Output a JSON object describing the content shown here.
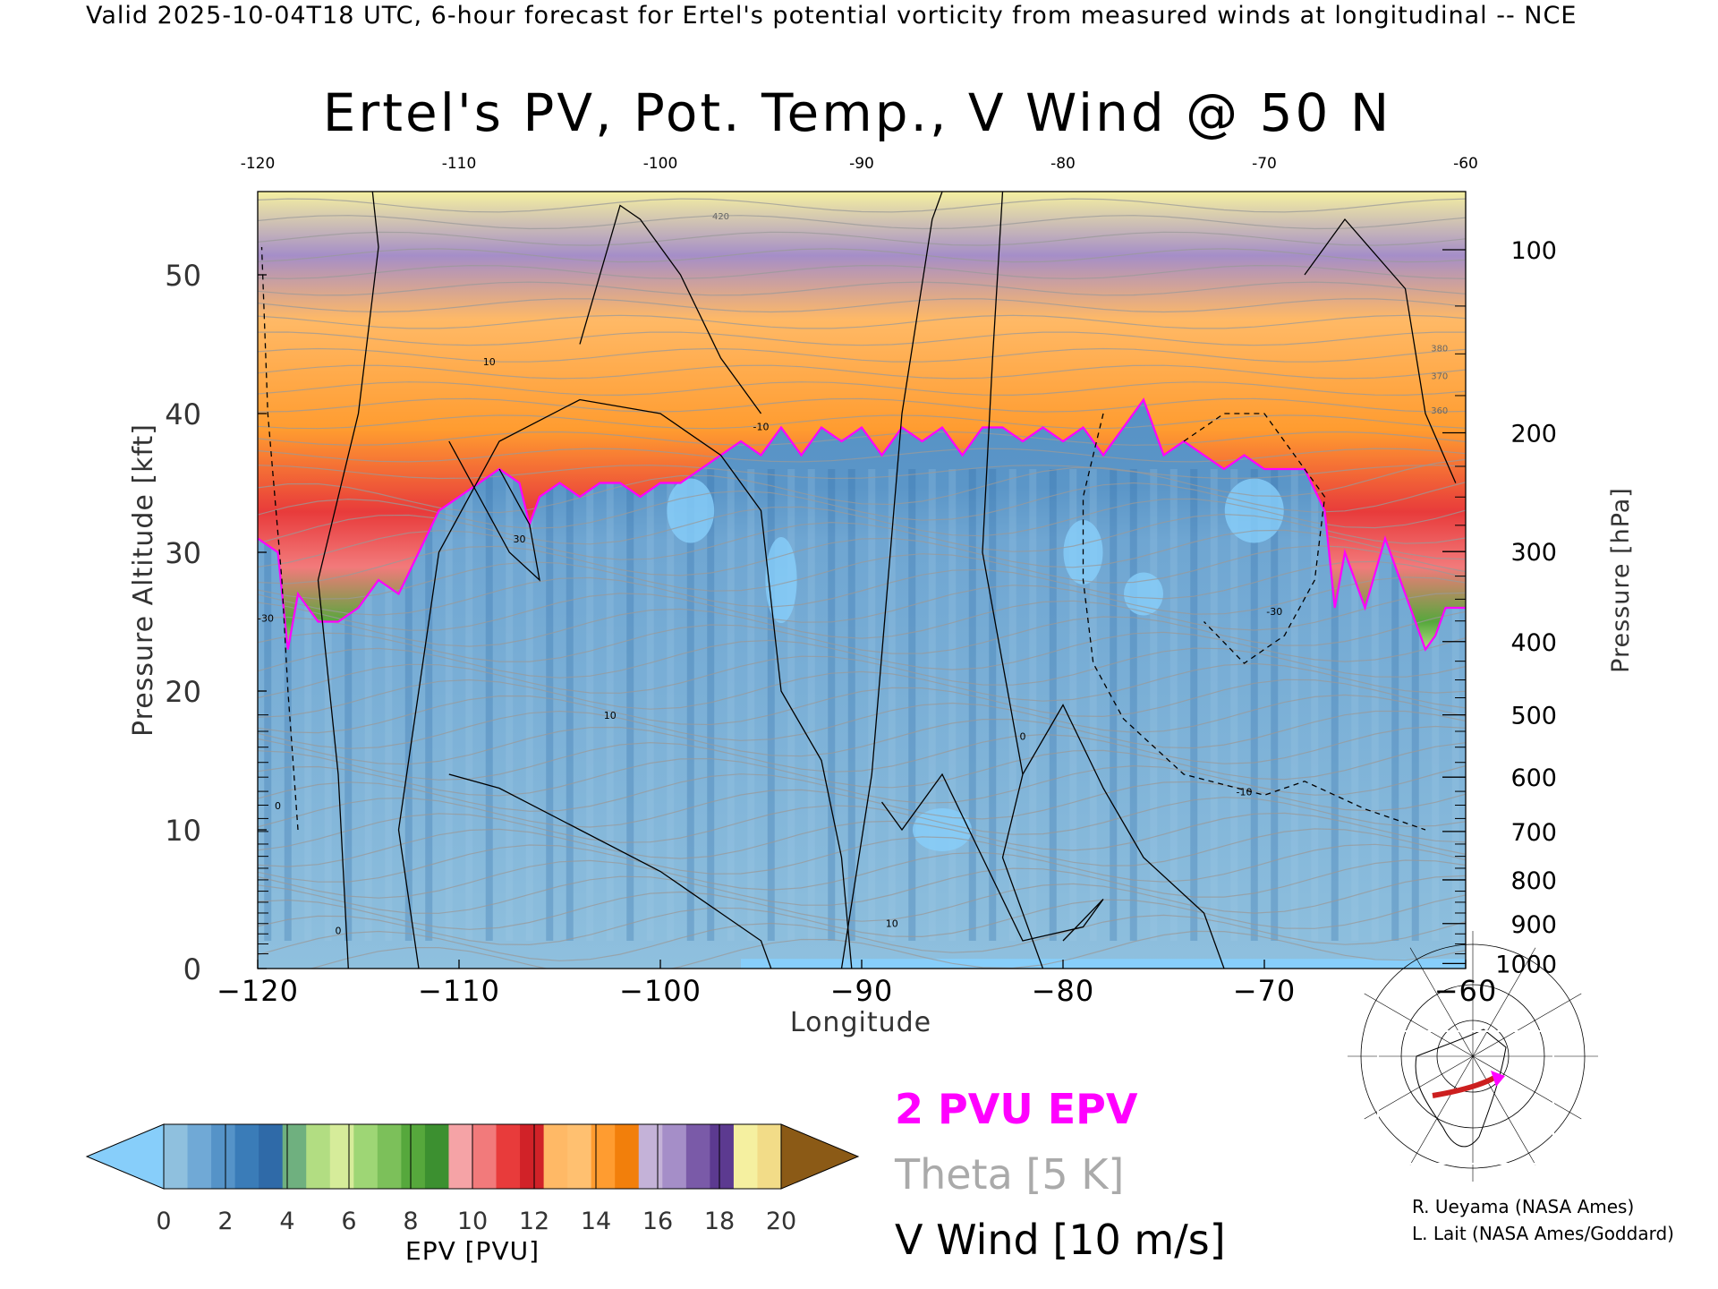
{
  "header": {
    "text": "Valid 2025-10-04T18 UTC, 6-hour forecast for Ertel's potential vorticity from measured winds at longitudinal -- NCE"
  },
  "chart_data": {
    "type": "heatmap",
    "title": "Ertel's PV, Pot. Temp., V Wind @ 50 N",
    "xlabel": "Longitude",
    "ylabel": "Pressure Altitude [kft]",
    "y2label": "Pressure [hPa]",
    "xlim": [
      -120,
      -60
    ],
    "ylim": [
      0,
      56
    ],
    "x_ticks": [
      "−120",
      "−110",
      "−100",
      "−90",
      "−80",
      "−70",
      "−60"
    ],
    "x_tick_values": [
      -120,
      -110,
      -100,
      -90,
      -80,
      -70,
      -60
    ],
    "top_x_ticks": [
      "-120",
      "-110",
      "-100",
      "-90",
      "-80",
      "-70",
      "-60"
    ],
    "y_ticks": [
      "0",
      "10",
      "20",
      "30",
      "40",
      "50"
    ],
    "y_tick_values": [
      0,
      10,
      20,
      30,
      40,
      50
    ],
    "pressure_ticks": [
      "1000",
      "900",
      "800",
      "700",
      "600",
      "500",
      "400",
      "300",
      "200",
      "100"
    ],
    "pressure_tick_values": [
      1000,
      900,
      800,
      700,
      600,
      500,
      400,
      300,
      200,
      100
    ],
    "tropopause_2pvu_kft": {
      "lon": [
        -120,
        -119,
        -118.5,
        -118,
        -117,
        -116,
        -115,
        -114,
        -113,
        -112,
        -111,
        -110,
        -109,
        -108,
        -107,
        -106.5,
        -106,
        -105,
        -104,
        -103,
        -102,
        -101,
        -100,
        -99,
        -98,
        -97,
        -96,
        -95,
        -94,
        -93,
        -92,
        -91,
        -90,
        -89,
        -88,
        -87,
        -86,
        -85,
        -84,
        -83,
        -82,
        -81,
        -80,
        -79,
        -78,
        -77,
        -76,
        -75,
        -74,
        -73,
        -72,
        -71,
        -70,
        -69,
        -68,
        -67,
        -66.5,
        -66,
        -65,
        -64,
        -63,
        -62,
        -61.5,
        -61,
        -60
      ],
      "kft": [
        31,
        30,
        23,
        27,
        25,
        25,
        26,
        28,
        27,
        30,
        33,
        34,
        35,
        36,
        35,
        32,
        34,
        35,
        34,
        35,
        35,
        34,
        35,
        35,
        36,
        37,
        38,
        37,
        39,
        37,
        39,
        38,
        39,
        37,
        39,
        38,
        39,
        37,
        39,
        39,
        38,
        39,
        38,
        39,
        37,
        39,
        41,
        37,
        38,
        37,
        36,
        37,
        36,
        36,
        36,
        33,
        26,
        30,
        26,
        31,
        27,
        23,
        24,
        26,
        26
      ]
    },
    "colorbar": {
      "title": "EPV [PVU]",
      "ticks": [
        "0",
        "2",
        "4",
        "6",
        "8",
        "10",
        "12",
        "14",
        "16",
        "18",
        "20"
      ],
      "tick_values": [
        0,
        2,
        4,
        6,
        8,
        10,
        12,
        14,
        16,
        18,
        20
      ],
      "colors": [
        "#8fc0de",
        "#70a9d6",
        "#5593c8",
        "#3a7cb8",
        "#2f6aa8",
        "#6fb07f",
        "#b2dd82",
        "#d6ec9a",
        "#9ed675",
        "#7cc05a",
        "#56a83c",
        "#3c9030",
        "#f5a3a6",
        "#f27a7b",
        "#e83b3b",
        "#d12228",
        "#ffb966",
        "#ffc070",
        "#ff9c30",
        "#f27f0b",
        "#c4b2d8",
        "#a58ec8",
        "#7a5aa8",
        "#5c3a90",
        "#f5f0a0",
        "#f2dc88"
      ],
      "under_color": "#87cefa",
      "over_color": "#8b5a16"
    },
    "legend": [
      {
        "label": "2 PVU EPV",
        "color": "#ff00ff"
      },
      {
        "label": "Theta [5 K]",
        "color": "#aaaaaa"
      },
      {
        "label": "V Wind [10 m/s]",
        "color": "#000000"
      }
    ],
    "contour_labels": [
      "10",
      "-10",
      "30",
      "-30",
      "0",
      "-0"
    ],
    "theta_labels": [
      "420",
      "380",
      "370",
      "360"
    ]
  },
  "credits": {
    "line1": "R. Ueyama (NASA Ames)",
    "line2": "L. Lait (NASA Ames/Goddard)"
  },
  "inset_map": {
    "description_icon": "polar-stereographic-map-icon",
    "track_color": "#cc1f1f",
    "marker_color": "#ff00ff"
  }
}
